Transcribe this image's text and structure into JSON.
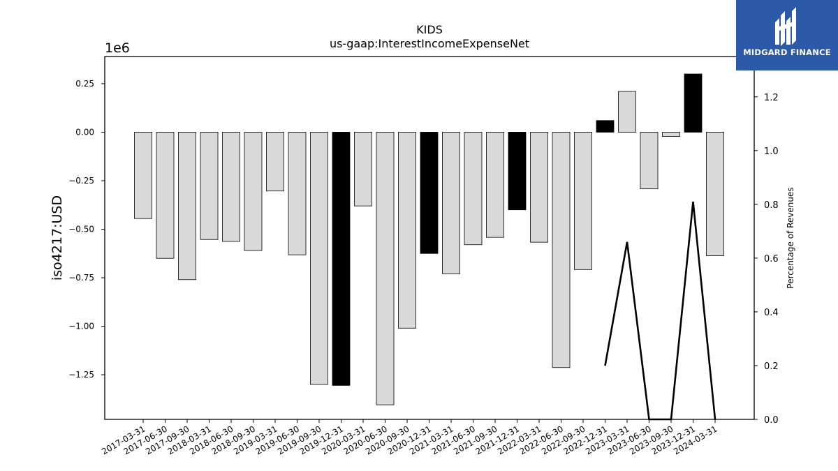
{
  "chart_data": {
    "type": "bar",
    "title": "KIDS",
    "subtitle": "us-gaap:InterestIncomeExpenseNet",
    "ylabel": "iso4217:USD",
    "y2label": "Percentage of Revenues",
    "y_scale_label": "1e6",
    "ylim": [
      -1.48,
      0.39
    ],
    "y2lim": [
      0.0,
      1.35
    ],
    "yticks": [
      0.25,
      0.0,
      -0.25,
      -0.5,
      -0.75,
      -1.0,
      -1.25
    ],
    "ytick_labels": [
      "0.25",
      "0.00",
      "−0.25",
      "−0.50",
      "−0.75",
      "−1.00",
      "−1.25"
    ],
    "y2ticks": [
      0.0,
      0.2,
      0.4,
      0.6,
      0.8,
      1.0,
      1.2
    ],
    "y2tick_labels": [
      "0.0",
      "0.2",
      "0.4",
      "0.6",
      "0.8",
      "1.0",
      "1.2"
    ],
    "categories": [
      "2017-03-31",
      "2017-06-30",
      "2017-09-30",
      "2018-03-31",
      "2018-06-30",
      "2018-09-30",
      "2019-03-31",
      "2019-06-30",
      "2019-09-30",
      "2019-12-31",
      "2020-03-31",
      "2020-06-30",
      "2020-09-30",
      "2020-12-31",
      "2021-03-31",
      "2021-06-30",
      "2021-09-30",
      "2021-12-31",
      "2022-03-31",
      "2022-06-30",
      "2022-09-30",
      "2022-12-31",
      "2023-03-31",
      "2023-06-30",
      "2023-09-30",
      "2023-12-31",
      "2024-03-31"
    ],
    "series": [
      {
        "values": [
          -0.445,
          -0.65,
          -0.76,
          -0.553,
          -0.563,
          -0.61,
          -0.303,
          -0.632,
          -1.3,
          -1.305,
          -0.38,
          -1.405,
          -1.01,
          -0.625,
          -0.73,
          -0.58,
          -0.542,
          -0.4,
          -0.567,
          -1.213,
          -0.708,
          0.06,
          0.21,
          -0.292,
          -0.022,
          0.3,
          -0.637
        ],
        "highlight": [
          false,
          false,
          false,
          false,
          false,
          false,
          false,
          false,
          false,
          true,
          false,
          false,
          false,
          true,
          false,
          false,
          false,
          true,
          false,
          false,
          false,
          true,
          false,
          false,
          false,
          true,
          false
        ]
      },
      {
        "type": "line",
        "axis": "y2",
        "values": [
          null,
          null,
          null,
          null,
          null,
          null,
          null,
          null,
          null,
          null,
          null,
          null,
          null,
          null,
          null,
          null,
          null,
          null,
          null,
          null,
          null,
          0.2,
          0.66,
          0.0,
          0.0,
          0.81,
          0.0
        ]
      }
    ],
    "colors": {
      "bar": "#d9d9d9",
      "highlight": "#000000",
      "line": "#000000"
    },
    "grid": false
  },
  "branding": {
    "logo_text": "MIDGARD FINANCE"
  }
}
